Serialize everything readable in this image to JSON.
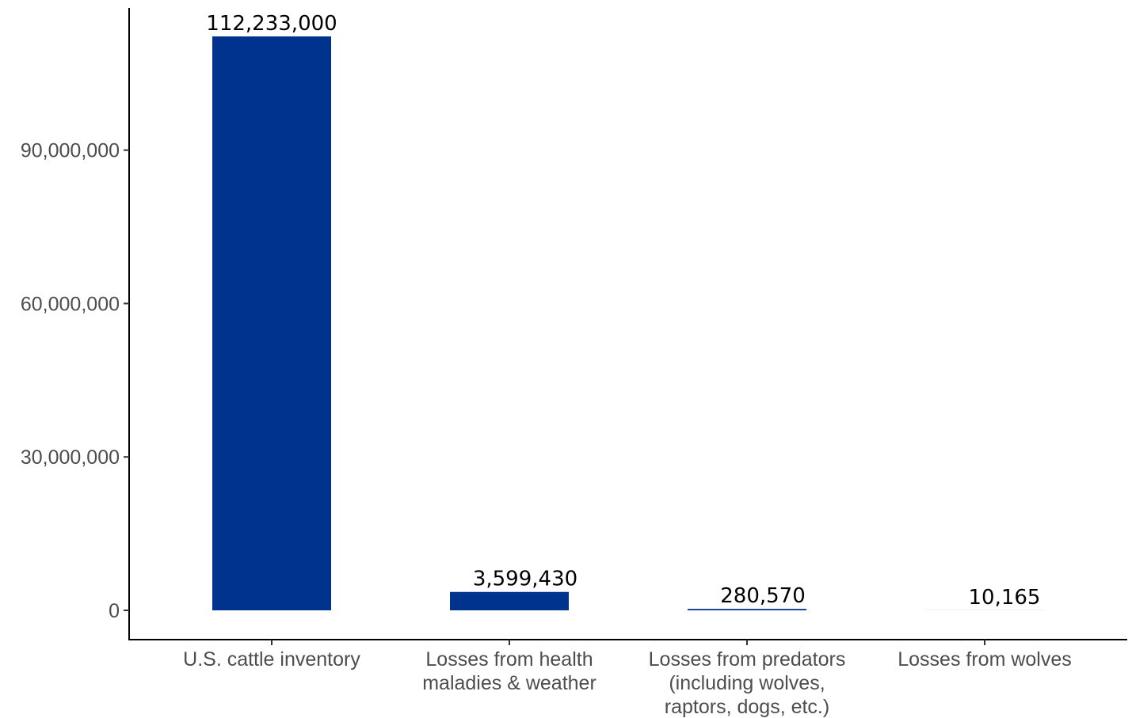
{
  "chart_data": {
    "type": "bar",
    "title": "",
    "xlabel": "",
    "ylabel": "",
    "categories": [
      [
        "U.S. cattle inventory"
      ],
      [
        "Losses from health",
        "maladies & weather"
      ],
      [
        "Losses from predators",
        "(including wolves,",
        "raptors, dogs, etc.)"
      ],
      [
        "Losses from wolves"
      ]
    ],
    "values": [
      112233000,
      3599430,
      280570,
      10165
    ],
    "data_labels": [
      "112,233,000",
      "3,599,430",
      "280,570",
      "10,165"
    ],
    "y_ticks": [
      0,
      30000000,
      60000000,
      90000000
    ],
    "y_tick_labels": [
      "0",
      "30,000,000",
      "60,000,000",
      "90,000,000"
    ],
    "ylim": [
      0,
      117500000
    ],
    "grid": false,
    "legend": "none",
    "bar_color": "#00338d"
  }
}
